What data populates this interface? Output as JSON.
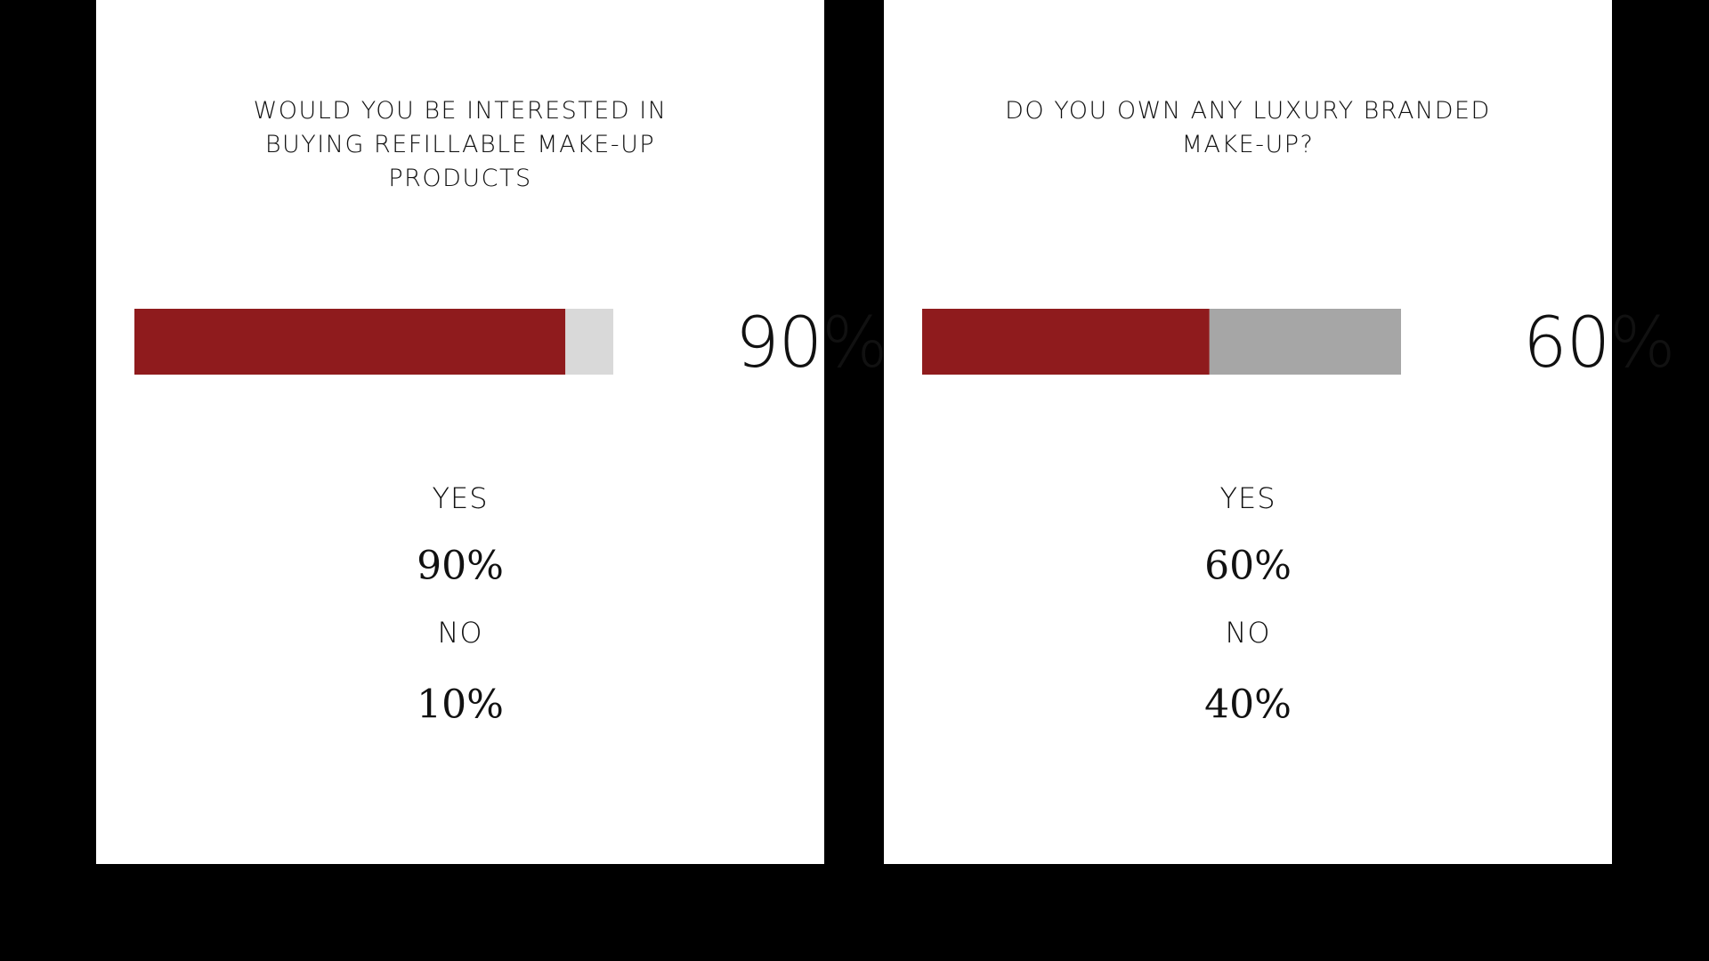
{
  "chart_data": [
    {
      "type": "progress",
      "title": "WOULD YOU BE INTERESTED IN BUYING REFILLABLE MAKE-UP PRODUCTS",
      "categories": [
        "YES",
        "NO"
      ],
      "values": [
        90,
        10
      ],
      "value_labels": [
        "90%",
        "10%"
      ],
      "colors": [
        "#8f1b1d",
        "#d9d9d9"
      ],
      "xlim": [
        0,
        100
      ]
    },
    {
      "type": "progress",
      "title": "DO YOU OWN ANY LUXURY BRANDED MAKE-UP?",
      "categories": [
        "YES",
        "NO"
      ],
      "values": [
        60,
        40
      ],
      "value_labels": [
        "60%",
        "40%"
      ],
      "colors": [
        "#8f1b1d",
        "#a6a6a6"
      ],
      "xlim": [
        0,
        100
      ]
    }
  ]
}
